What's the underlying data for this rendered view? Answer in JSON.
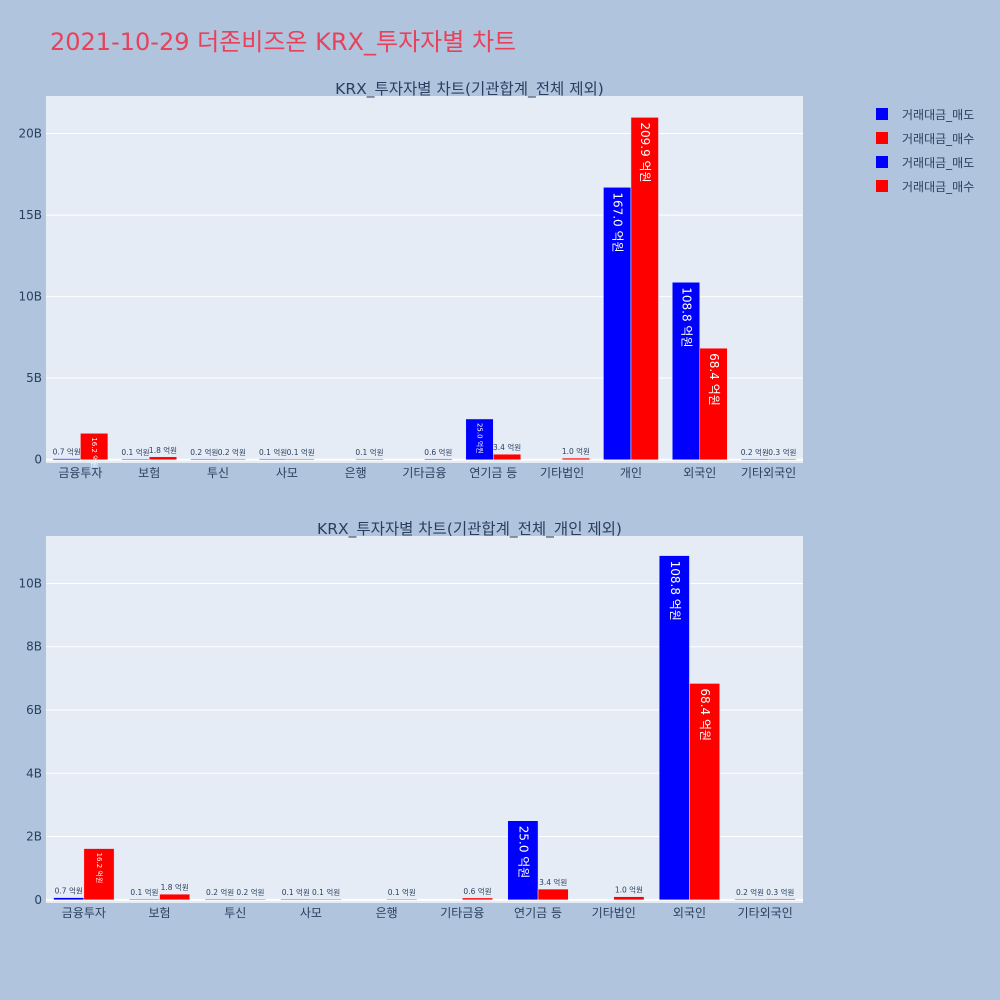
{
  "page": {
    "title": "2021-10-29 더존비즈온 KRX_투자자별 차트"
  },
  "colors": {
    "sell": "#0000ff",
    "buy": "#ff0000",
    "title": "#e8425a",
    "plot_bg": "#e5ecf6",
    "page_bg": "#b0c4de"
  },
  "legend": {
    "items": [
      {
        "label": "거래대금_매도",
        "color": "#0000ff"
      },
      {
        "label": "거래대금_매수",
        "color": "#ff0000"
      },
      {
        "label": "거래대금_매도",
        "color": "#0000ff"
      },
      {
        "label": "거래대금_매수",
        "color": "#ff0000"
      }
    ],
    "placement": "top-right"
  },
  "chart_data": [
    {
      "type": "bar",
      "title": "KRX_투자자별 차트(기관합계_전체 제외)",
      "categories": [
        "금융투자",
        "보험",
        "투신",
        "사모",
        "은행",
        "기타금융",
        "연기금 등",
        "기타법인",
        "개인",
        "외국인",
        "기타외국인"
      ],
      "series": [
        {
          "name": "거래대금_매도",
          "color": "#0000ff",
          "values": [
            0.07,
            0.01,
            0.02,
            0.01,
            0,
            0,
            2.5,
            0,
            16.7,
            10.88,
            0.02
          ],
          "labels": [
            "0.7 억원",
            "0.1 억원",
            "0.2 억원",
            "0.1 억원",
            "",
            "",
            "25.0 억원",
            "",
            "167.0 억원",
            "108.8 억원",
            "0.2 억원"
          ]
        },
        {
          "name": "거래대금_매수",
          "color": "#ff0000",
          "values": [
            1.62,
            0.18,
            0.02,
            0.01,
            0.01,
            0.06,
            0.34,
            0.1,
            20.99,
            6.84,
            0.03
          ],
          "labels": [
            "16.2 억원",
            "1.8 억원",
            "0.2 억원",
            "0.1 억원",
            "0.1 억원",
            "0.6 억원",
            "3.4 억원",
            "1.0 억원",
            "209.9 억원",
            "68.4 억원",
            "0.3 억원"
          ]
        }
      ],
      "yticks": [
        "0",
        "5B",
        "10B",
        "15B",
        "20B"
      ],
      "ytick_values": [
        0,
        5,
        10,
        15,
        20
      ],
      "ylim": [
        -0.2,
        22.3
      ],
      "grid": true
    },
    {
      "type": "bar",
      "title": "KRX_투자자별 차트(기관합계_전체_개인 제외)",
      "categories": [
        "금융투자",
        "보험",
        "투신",
        "사모",
        "은행",
        "기타금융",
        "연기금 등",
        "기타법인",
        "외국인",
        "기타외국인"
      ],
      "series": [
        {
          "name": "거래대금_매도",
          "color": "#0000ff",
          "values": [
            0.07,
            0.01,
            0.02,
            0.01,
            0,
            0,
            2.5,
            0,
            10.88,
            0.02
          ],
          "labels": [
            "0.7 억원",
            "0.1 억원",
            "0.2 억원",
            "0.1 억원",
            "",
            "",
            "25.0 억원",
            "",
            "108.8 억원",
            "0.2 억원"
          ]
        },
        {
          "name": "거래대금_매수",
          "color": "#ff0000",
          "values": [
            1.62,
            0.18,
            0.02,
            0.01,
            0.01,
            0.06,
            0.34,
            0.1,
            6.84,
            0.03
          ],
          "labels": [
            "16.2 억원",
            "1.8 억원",
            "0.2 억원",
            "0.1 억원",
            "0.1 억원",
            "0.6 억원",
            "3.4 억원",
            "1.0 억원",
            "68.4 억원",
            "0.3 억원"
          ]
        }
      ],
      "yticks": [
        "0",
        "2B",
        "4B",
        "6B",
        "8B",
        "10B"
      ],
      "ytick_values": [
        0,
        2,
        4,
        6,
        8,
        10
      ],
      "ylim": [
        -0.1,
        11.5
      ],
      "grid": true
    }
  ]
}
